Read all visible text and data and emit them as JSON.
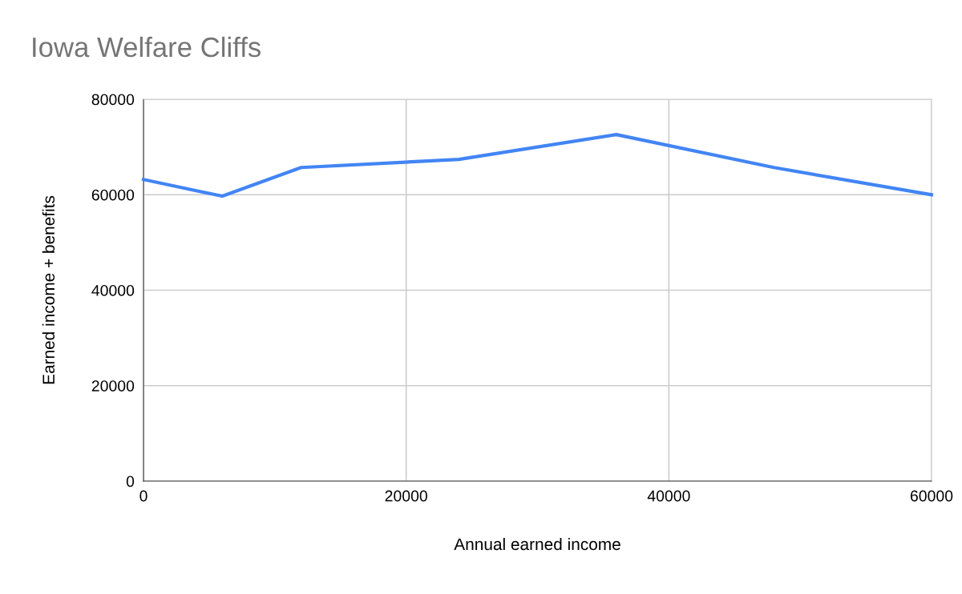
{
  "chart_data": {
    "type": "line",
    "title": "Iowa Welfare Cliffs",
    "xlabel": "Annual earned income",
    "ylabel": "Earned income + benefits",
    "x": [
      0,
      6000,
      12000,
      24000,
      36000,
      48000,
      60000
    ],
    "series": [
      {
        "color": "#4285f4",
        "values": [
          63200,
          59700,
          65700,
          67400,
          72600,
          65700,
          60000
        ]
      }
    ],
    "xlim": [
      0,
      60000
    ],
    "xticks": [
      0,
      20000,
      40000,
      60000
    ],
    "ylim": [
      0,
      80000
    ],
    "yticks": [
      0,
      20000,
      40000,
      60000,
      80000
    ],
    "grid": true,
    "marker": "none",
    "line_style": "solid"
  }
}
